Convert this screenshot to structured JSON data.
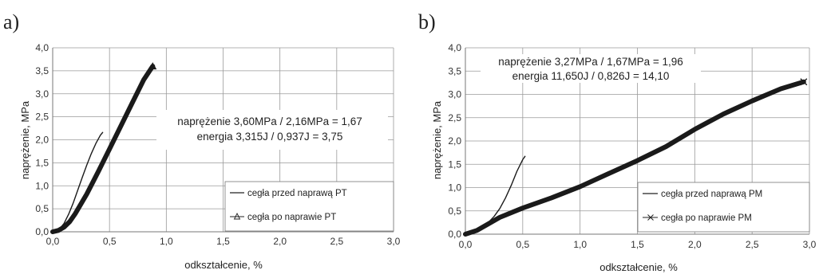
{
  "chart_data": [
    {
      "type": "line",
      "panel": "a)",
      "xlabel": "odkształcenie, %",
      "ylabel": "naprężenie, MPa",
      "xlim": [
        0,
        3
      ],
      "ylim": [
        0,
        4
      ],
      "xticks": [
        "0,0",
        "0,5",
        "1,0",
        "1,5",
        "2,0",
        "2,5",
        "3,0"
      ],
      "yticks": [
        "0,0",
        "0,5",
        "1,0",
        "1,5",
        "2,0",
        "2,5",
        "3,0",
        "3,5",
        "4,0"
      ],
      "grid": true,
      "legend_position": "bottom-right",
      "annotations": [
        "naprężenie 3,60MPa / 2,16MPa = 1,67",
        "energia 3,315J / 0,937J = 3,75"
      ],
      "series": [
        {
          "name": "cegła przed naprawą PT",
          "style": "thin",
          "x": [
            0,
            0.03,
            0.06,
            0.1,
            0.14,
            0.18,
            0.22,
            0.26,
            0.3,
            0.34,
            0.38,
            0.42,
            0.44
          ],
          "y": [
            0,
            0.02,
            0.06,
            0.18,
            0.38,
            0.62,
            0.9,
            1.18,
            1.45,
            1.7,
            1.92,
            2.1,
            2.16
          ]
        },
        {
          "name": "cegła po naprawie PT",
          "style": "thick",
          "x": [
            0,
            0.05,
            0.1,
            0.15,
            0.2,
            0.3,
            0.4,
            0.5,
            0.6,
            0.7,
            0.8,
            0.88
          ],
          "y": [
            0,
            0.03,
            0.1,
            0.22,
            0.4,
            0.82,
            1.3,
            1.8,
            2.3,
            2.8,
            3.3,
            3.6
          ]
        }
      ]
    },
    {
      "type": "line",
      "panel": "b)",
      "xlabel": "odkształcenie, %",
      "ylabel": "naprężenie, MPa",
      "xlim": [
        0,
        3
      ],
      "ylim": [
        0,
        4
      ],
      "xticks": [
        "0,0",
        "0,5",
        "1,0",
        "1,5",
        "2,0",
        "2,5",
        "3,0"
      ],
      "yticks": [
        "0,0",
        "0,5",
        "1,0",
        "1,5",
        "2,0",
        "2,5",
        "3,0",
        "3,5",
        "4,0"
      ],
      "grid": true,
      "legend_position": "bottom-right",
      "annotations": [
        "naprężenie 3,27MPa / 1,67MPa = 1,96",
        "energia 11,650J / 0,826J = 14,10"
      ],
      "series": [
        {
          "name": "cegła przed naprawą PM",
          "style": "thin",
          "x": [
            0,
            0.05,
            0.1,
            0.15,
            0.2,
            0.25,
            0.3,
            0.35,
            0.4,
            0.45,
            0.5,
            0.52
          ],
          "y": [
            0,
            0.03,
            0.08,
            0.15,
            0.25,
            0.38,
            0.55,
            0.78,
            1.05,
            1.35,
            1.6,
            1.67
          ]
        },
        {
          "name": "cegła po naprawie PM",
          "style": "thick",
          "x": [
            0,
            0.1,
            0.2,
            0.3,
            0.5,
            0.75,
            1.0,
            1.25,
            1.5,
            1.75,
            2.0,
            2.25,
            2.5,
            2.75,
            2.95
          ],
          "y": [
            0,
            0.08,
            0.22,
            0.36,
            0.56,
            0.78,
            1.02,
            1.3,
            1.58,
            1.88,
            2.25,
            2.58,
            2.86,
            3.12,
            3.27
          ]
        }
      ]
    }
  ]
}
